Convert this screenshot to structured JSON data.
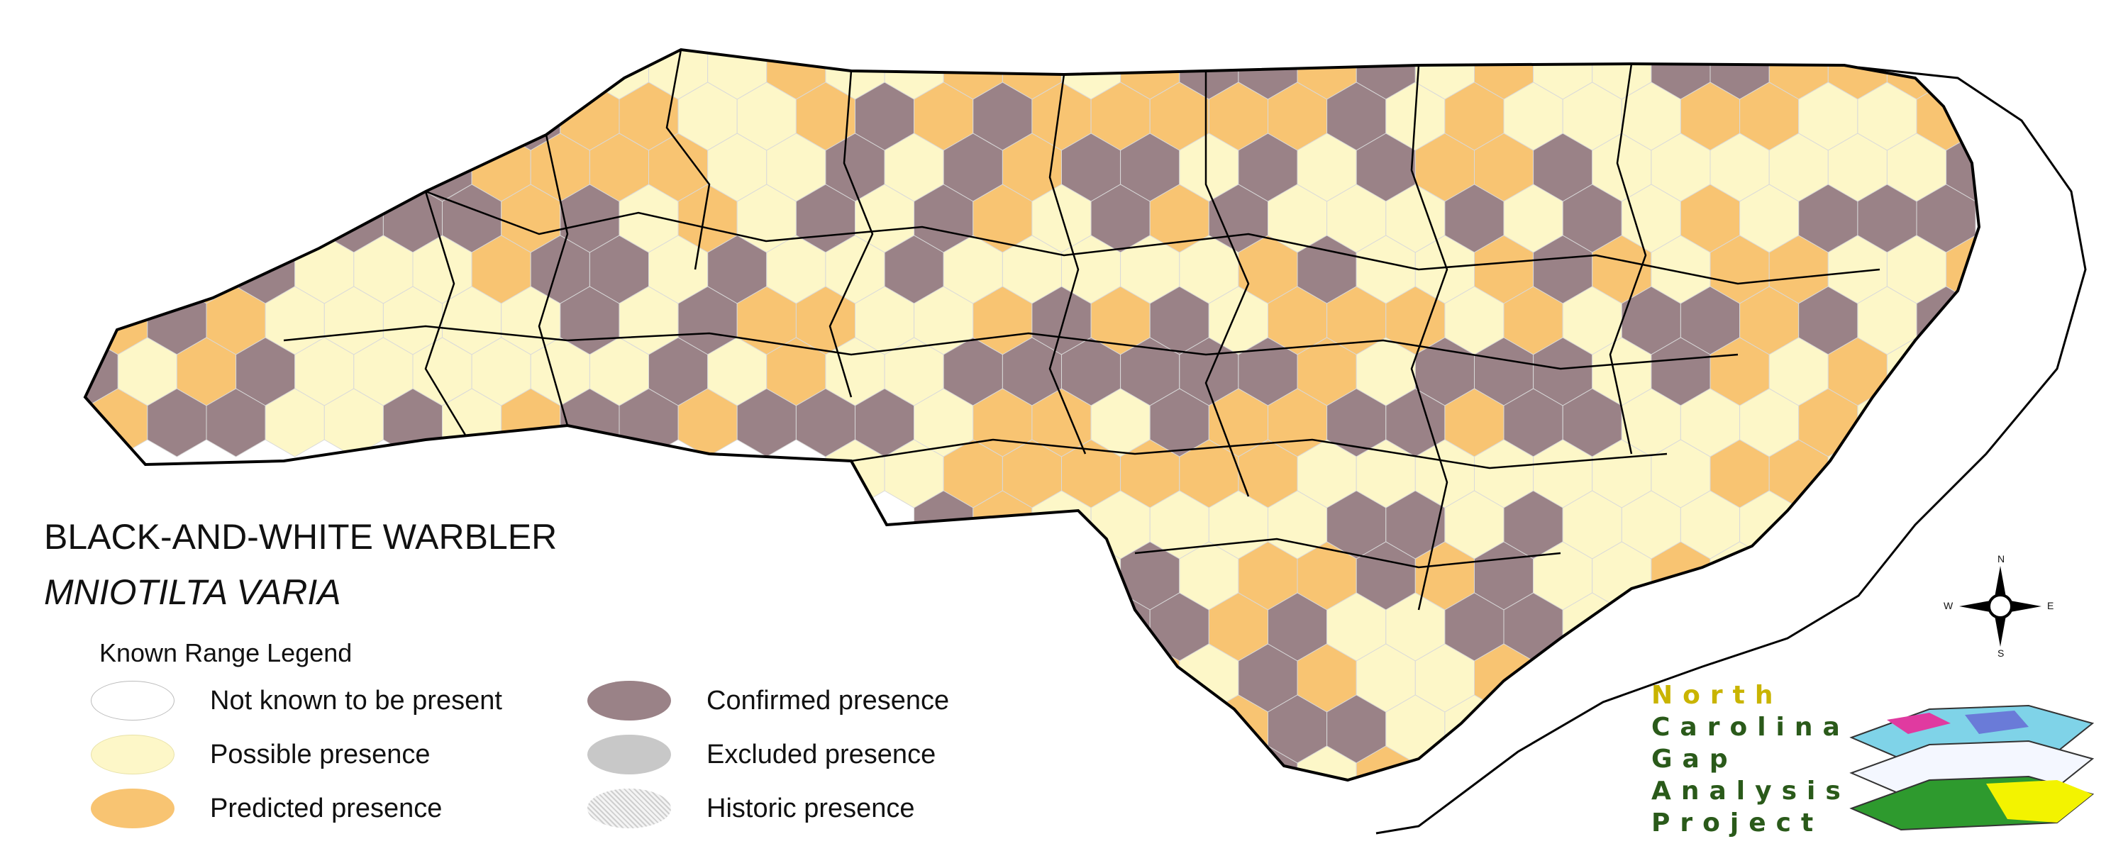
{
  "title": "BLACK-AND-WHITE WARBLER",
  "subtitle": "MNIOTILTA VARIA",
  "legend": {
    "heading": "Known Range Legend",
    "items": [
      {
        "label": "Not known to be present",
        "color": "#ffffff"
      },
      {
        "label": "Possible presence",
        "color": "#fdf7c8"
      },
      {
        "label": "Predicted presence",
        "color": "#f8c472"
      },
      {
        "label": "Confirmed presence",
        "color": "#9a8287"
      },
      {
        "label": "Excluded presence",
        "color": "#c8c8c8"
      },
      {
        "label": "Historic presence",
        "color": "#dcdcdc"
      }
    ]
  },
  "project": {
    "line1": "North",
    "line2": "Carolina",
    "line3": "Gap",
    "line4": "Analysis",
    "line5": "Project"
  },
  "compass": {
    "n": "N",
    "s": "S",
    "e": "E",
    "w": "W"
  }
}
